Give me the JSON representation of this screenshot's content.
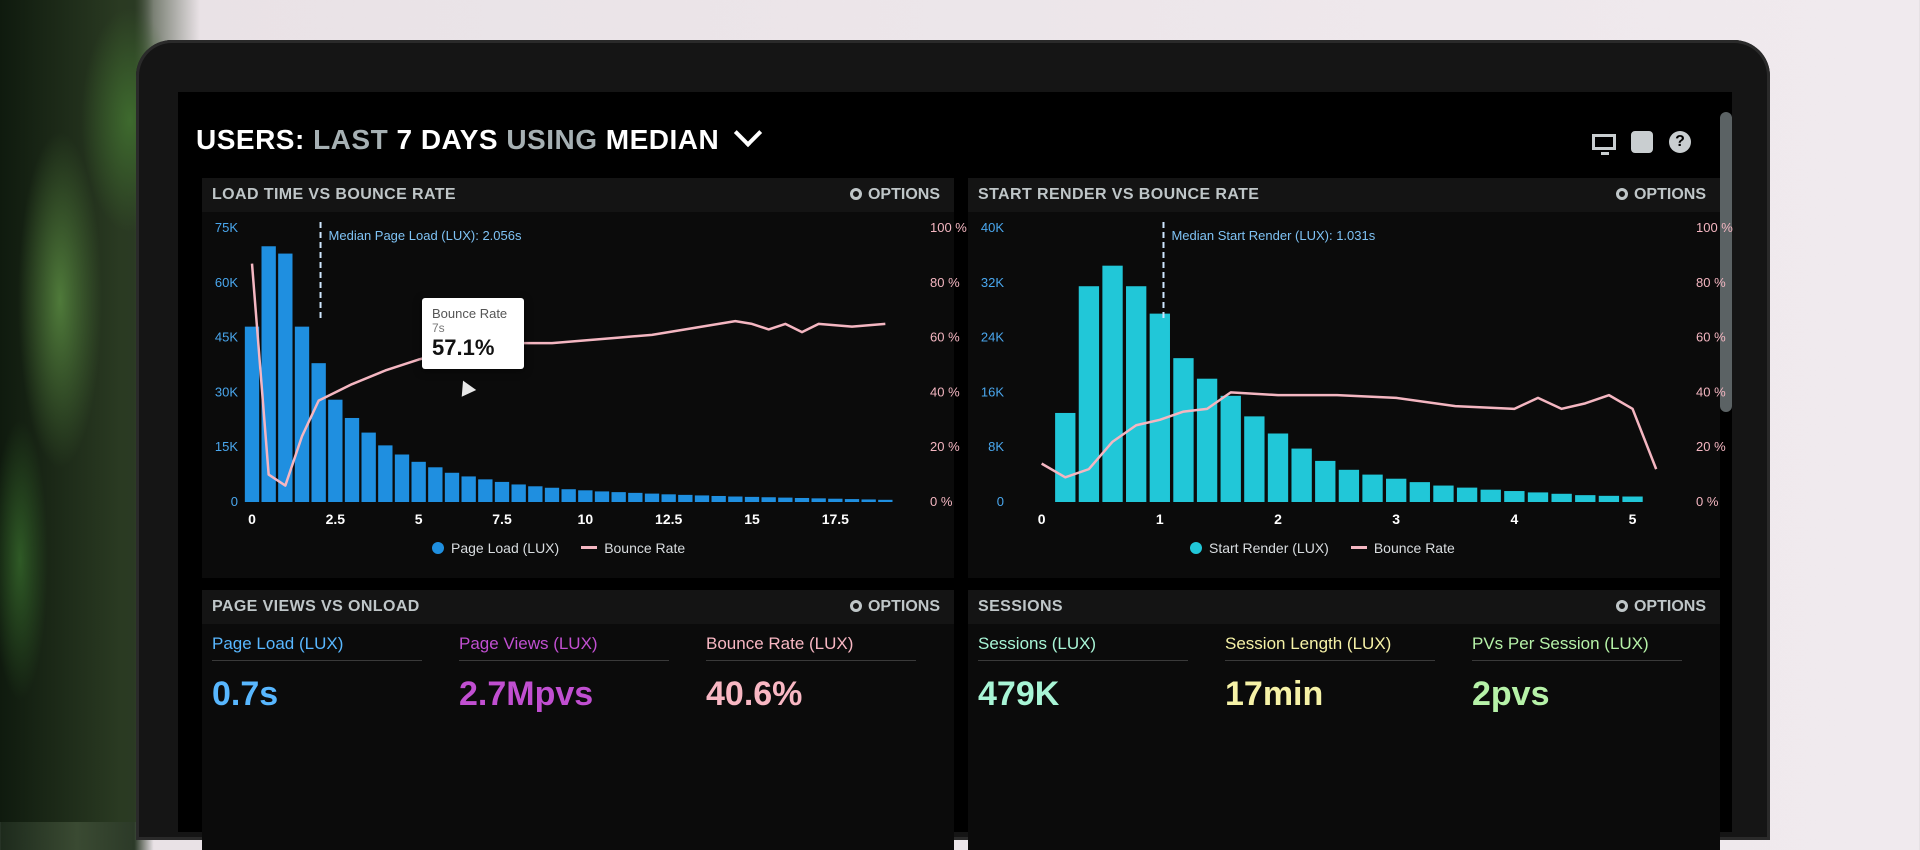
{
  "header": {
    "title_prefix": "USERS:",
    "title_mid1": "LAST",
    "title_days": "7 DAYS",
    "title_mid2": "USING",
    "title_method": "MEDIAN"
  },
  "icons": [
    "monitor-icon",
    "share-icon",
    "help-icon",
    "gear-icon",
    "chevron-down-icon"
  ],
  "colors": {
    "blue_bar": "#1f8fe0",
    "teal_bar": "#21c7d8",
    "bounce_line": "#f4b6c1",
    "kpi_blue": "#58b7ff",
    "kpi_purple": "#c14fd1",
    "kpi_pink": "#f8b7c3",
    "kpi_mint": "#a8f5d6",
    "kpi_yellow": "#f6f2a7",
    "kpi_green": "#b6f2a8"
  },
  "panels": {
    "load": {
      "title": "LOAD TIME VS BOUNCE RATE",
      "options": "OPTIONS",
      "median_label": "Median Page Load (LUX): 2.056s",
      "legend_bar": "Page Load (LUX)",
      "legend_line": "Bounce Rate",
      "tooltip": {
        "label": "Bounce Rate",
        "x": "7s",
        "value": "57.1%"
      }
    },
    "render": {
      "title": "START RENDER VS BOUNCE RATE",
      "options": "OPTIONS",
      "median_label": "Median Start Render (LUX): 1.031s",
      "legend_bar": "Start Render (LUX)",
      "legend_line": "Bounce Rate"
    },
    "pageviews": {
      "title": "PAGE VIEWS VS ONLOAD",
      "options": "OPTIONS",
      "kpis": [
        {
          "label": "Page Load (LUX)",
          "value": "0.7s"
        },
        {
          "label": "Page Views (LUX)",
          "value": "2.7Mpvs"
        },
        {
          "label": "Bounce Rate (LUX)",
          "value": "40.6%"
        }
      ]
    },
    "sessions": {
      "title": "SESSIONS",
      "options": "OPTIONS",
      "kpis": [
        {
          "label": "Sessions (LUX)",
          "value": "479K"
        },
        {
          "label": "Session Length (LUX)",
          "value": "17min"
        },
        {
          "label": "PVs Per Session (LUX)",
          "value": "2pvs"
        }
      ]
    }
  },
  "chart_data": [
    {
      "type": "bar",
      "series": [
        {
          "name": "Page Load (LUX)",
          "x": [
            0.0,
            0.5,
            1.0,
            1.5,
            2.0,
            2.5,
            3.0,
            3.5,
            4.0,
            4.5,
            5.0,
            5.5,
            6.0,
            6.5,
            7.0,
            7.5,
            8.0,
            8.5,
            9.0,
            9.5,
            10.0,
            10.5,
            11.0,
            11.5,
            12.0,
            12.5,
            13.0,
            13.5,
            14.0,
            14.5,
            15.0,
            15.5,
            16.0,
            16.5,
            17.0,
            17.5,
            18.0,
            18.5,
            19.0
          ],
          "values": [
            48000,
            70000,
            68000,
            48000,
            38000,
            28000,
            23000,
            19000,
            15500,
            13000,
            11000,
            9500,
            8000,
            7000,
            6200,
            5500,
            4800,
            4300,
            3900,
            3500,
            3200,
            2900,
            2700,
            2500,
            2300,
            2100,
            1950,
            1800,
            1650,
            1500,
            1400,
            1300,
            1200,
            1100,
            1000,
            900,
            800,
            700,
            600
          ]
        },
        {
          "name": "Bounce Rate",
          "x": [
            0.0,
            0.5,
            1.0,
            1.5,
            2.0,
            3.0,
            4.0,
            5.0,
            6.0,
            7.0,
            8.0,
            9.0,
            10.0,
            11.0,
            12.0,
            13.0,
            14.0,
            14.5,
            15.0,
            15.5,
            16.0,
            16.5,
            17.0,
            18.0,
            19.0
          ],
          "values": [
            87,
            10,
            6,
            24,
            37,
            43,
            48,
            52,
            55,
            57.1,
            58,
            58,
            59,
            60,
            61,
            63,
            65,
            66,
            65,
            63,
            65,
            62,
            65,
            64,
            65
          ]
        }
      ],
      "xlabel": "",
      "ylabel": "",
      "xlim": [
        0,
        19.5
      ],
      "ylim": [
        0,
        75000
      ],
      "y2lim": [
        0,
        100
      ],
      "xticks": [
        "0",
        "2.5",
        "5",
        "7.5",
        "10",
        "12.5",
        "15",
        "17.5"
      ],
      "yticks": [
        "0",
        "15K",
        "30K",
        "45K",
        "60K",
        "75K"
      ],
      "y2ticks": [
        "0 %",
        "20 %",
        "40 %",
        "60 %",
        "80 %",
        "100 %"
      ],
      "median_x": 2.056,
      "grid": false,
      "legend": "bottom"
    },
    {
      "type": "bar",
      "series": [
        {
          "name": "Start Render (LUX)",
          "x": [
            0.2,
            0.4,
            0.6,
            0.8,
            1.0,
            1.2,
            1.4,
            1.6,
            1.8,
            2.0,
            2.2,
            2.4,
            2.6,
            2.8,
            3.0,
            3.2,
            3.4,
            3.6,
            3.8,
            4.0,
            4.2,
            4.4,
            4.6,
            4.8,
            5.0
          ],
          "values": [
            13000,
            31500,
            34500,
            31500,
            27500,
            21000,
            18000,
            15500,
            12500,
            10000,
            7800,
            6000,
            4700,
            4000,
            3400,
            2900,
            2400,
            2100,
            1800,
            1600,
            1400,
            1200,
            1000,
            900,
            800
          ]
        },
        {
          "name": "Bounce Rate",
          "x": [
            0.0,
            0.2,
            0.4,
            0.6,
            0.8,
            1.0,
            1.2,
            1.4,
            1.6,
            2.0,
            2.5,
            3.0,
            3.5,
            4.0,
            4.2,
            4.4,
            4.6,
            4.8,
            5.0,
            5.2
          ],
          "values": [
            14,
            9,
            12,
            22,
            28,
            30,
            33,
            34,
            40,
            39,
            39,
            38,
            35,
            34,
            38,
            34,
            36,
            39,
            34,
            12
          ]
        }
      ],
      "xlabel": "",
      "ylabel": "",
      "xlim": [
        -0.2,
        5.3
      ],
      "ylim": [
        0,
        40000
      ],
      "y2lim": [
        0,
        100
      ],
      "xticks": [
        "0",
        "1",
        "2",
        "3",
        "4",
        "5"
      ],
      "yticks": [
        "0",
        "8K",
        "16K",
        "24K",
        "32K",
        "40K"
      ],
      "y2ticks": [
        "0 %",
        "20 %",
        "40 %",
        "60 %",
        "80 %",
        "100 %"
      ],
      "median_x": 1.031,
      "grid": false,
      "legend": "bottom"
    }
  ]
}
